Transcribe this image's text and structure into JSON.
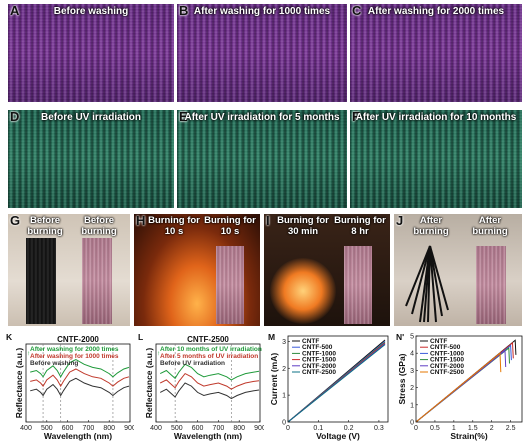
{
  "row1": {
    "A": {
      "label": "A",
      "caption": "Before washing"
    },
    "B": {
      "label": "B",
      "caption": "After washing for 1000 times"
    },
    "C": {
      "label": "C",
      "caption": "After washing for 2000 times"
    }
  },
  "row2": {
    "D": {
      "label": "D",
      "caption": "Before UV irradiation"
    },
    "E": {
      "label": "E",
      "caption": "After UV irradiation for 5 months"
    },
    "F": {
      "label": "F",
      "caption": "After UV irradiation for 10 months"
    }
  },
  "row3": {
    "G": {
      "label": "G",
      "cap1": "Before burning",
      "cap2": "Before burning"
    },
    "H": {
      "label": "H",
      "cap1": "Burning for 10 s",
      "cap2": "Burning for 10 s"
    },
    "I": {
      "label": "I",
      "cap1": "Burning for 30 min",
      "cap2": "Burning for 8 hr"
    },
    "J": {
      "label": "J",
      "cap1": "After burning",
      "cap2": "After burning"
    }
  },
  "chart_data": [
    {
      "id": "K",
      "type": "line",
      "title": "CNTF-2000",
      "xlabel": "Wavelength (nm)",
      "ylabel": "Reflectance (a.u.)",
      "xlim": [
        400,
        900
      ],
      "xticks": [
        400,
        500,
        600,
        700,
        800,
        900
      ],
      "dashed_x": [
        482,
        567,
        818
      ],
      "legend": [
        "After washing for 2000 times",
        "After washing for 1000 times",
        "Before washing"
      ],
      "series": [
        {
          "name": "After washing for 2000 times",
          "color": "#1f9a3a",
          "x": [
            420,
            450,
            470,
            482,
            500,
            530,
            550,
            567,
            580,
            610,
            640,
            680,
            720,
            760,
            800,
            818,
            840,
            870,
            895
          ],
          "y": [
            0.64,
            0.66,
            0.62,
            0.58,
            0.66,
            0.72,
            0.66,
            0.58,
            0.64,
            0.76,
            0.8,
            0.74,
            0.7,
            0.68,
            0.62,
            0.58,
            0.63,
            0.68,
            0.7
          ]
        },
        {
          "name": "After washing for 1000 times",
          "color": "#c0392b",
          "x": [
            420,
            450,
            470,
            482,
            500,
            530,
            550,
            567,
            580,
            610,
            640,
            680,
            720,
            760,
            800,
            818,
            840,
            870,
            895
          ],
          "y": [
            0.52,
            0.54,
            0.5,
            0.46,
            0.54,
            0.6,
            0.54,
            0.46,
            0.52,
            0.64,
            0.68,
            0.62,
            0.58,
            0.56,
            0.5,
            0.46,
            0.51,
            0.56,
            0.58
          ]
        },
        {
          "name": "Before washing",
          "color": "#333333",
          "x": [
            420,
            450,
            470,
            482,
            500,
            530,
            550,
            567,
            580,
            610,
            640,
            680,
            720,
            760,
            800,
            818,
            840,
            870,
            895
          ],
          "y": [
            0.4,
            0.42,
            0.38,
            0.34,
            0.42,
            0.48,
            0.42,
            0.34,
            0.4,
            0.52,
            0.56,
            0.5,
            0.46,
            0.44,
            0.38,
            0.34,
            0.39,
            0.44,
            0.46
          ]
        }
      ]
    },
    {
      "id": "L",
      "type": "line",
      "title": "CNTF-2500",
      "xlabel": "Wavelength (nm)",
      "ylabel": "Reflectance (a.u.)",
      "xlim": [
        400,
        900
      ],
      "xticks": [
        400,
        500,
        600,
        700,
        800,
        900
      ],
      "dashed_x": [
        492,
        762
      ],
      "legend": [
        "After 10 months of UV irradiation",
        "After 5 months of UV irradiation",
        "Before UV irradiation"
      ],
      "series": [
        {
          "name": "After 10 months of UV irradiation",
          "color": "#1f9a3a",
          "x": [
            420,
            450,
            475,
            492,
            510,
            540,
            570,
            600,
            630,
            660,
            700,
            740,
            762,
            790,
            830,
            870,
            895
          ],
          "y": [
            0.62,
            0.66,
            0.6,
            0.56,
            0.64,
            0.74,
            0.7,
            0.62,
            0.58,
            0.6,
            0.62,
            0.58,
            0.54,
            0.58,
            0.62,
            0.64,
            0.65
          ]
        },
        {
          "name": "After 5 months of UV irradiation",
          "color": "#c0392b",
          "x": [
            420,
            450,
            475,
            492,
            510,
            540,
            570,
            600,
            630,
            660,
            700,
            740,
            762,
            790,
            830,
            870,
            895
          ],
          "y": [
            0.5,
            0.54,
            0.48,
            0.44,
            0.52,
            0.62,
            0.58,
            0.5,
            0.46,
            0.48,
            0.5,
            0.46,
            0.42,
            0.46,
            0.5,
            0.52,
            0.53
          ]
        },
        {
          "name": "Before UV irradiation",
          "color": "#333333",
          "x": [
            420,
            450,
            475,
            492,
            510,
            540,
            570,
            600,
            630,
            660,
            700,
            740,
            762,
            790,
            830,
            870,
            895
          ],
          "y": [
            0.38,
            0.42,
            0.36,
            0.32,
            0.4,
            0.5,
            0.46,
            0.38,
            0.34,
            0.36,
            0.38,
            0.34,
            0.3,
            0.34,
            0.38,
            0.4,
            0.41
          ]
        }
      ]
    },
    {
      "id": "M",
      "type": "line",
      "xlabel": "Voltage (V)",
      "ylabel": "Current (mA)",
      "xlim": [
        0,
        0.33
      ],
      "ylim": [
        0,
        3.2
      ],
      "xticks": [
        0.0,
        0.1,
        0.2,
        0.3
      ],
      "yticks": [
        0,
        1,
        2,
        3
      ],
      "legend": [
        "CNTF",
        "CNTF-500",
        "CNTF-1000",
        "CNTF-1500",
        "CNTF-2000",
        "CNTF-2500"
      ],
      "series": [
        {
          "name": "CNTF",
          "color": "#111111",
          "x": [
            0,
            0.32
          ],
          "y": [
            0,
            3.05
          ]
        },
        {
          "name": "CNTF-500",
          "color": "#3b5bdb",
          "x": [
            0,
            0.32
          ],
          "y": [
            0,
            3.0
          ]
        },
        {
          "name": "CNTF-1000",
          "color": "#2b8a3e",
          "x": [
            0,
            0.32
          ],
          "y": [
            0,
            2.97
          ]
        },
        {
          "name": "CNTF-1500",
          "color": "#c92a2a",
          "x": [
            0,
            0.32
          ],
          "y": [
            0,
            2.94
          ]
        },
        {
          "name": "CNTF-2000",
          "color": "#5f3dc4",
          "x": [
            0,
            0.32
          ],
          "y": [
            0,
            2.91
          ]
        },
        {
          "name": "CNTF-2500",
          "color": "#0b7285",
          "x": [
            0,
            0.32
          ],
          "y": [
            0,
            2.88
          ]
        }
      ]
    },
    {
      "id": "N",
      "type": "line",
      "xlabel": "Strain(%)",
      "ylabel": "Stress (GPa)",
      "xlim": [
        0,
        2.8
      ],
      "ylim": [
        0,
        5
      ],
      "xticks": [
        0.0,
        0.5,
        1.0,
        1.5,
        2.0,
        2.5
      ],
      "yticks": [
        0,
        1,
        2,
        3,
        4,
        5
      ],
      "legend": [
        "CNTF",
        "CNTF-500",
        "CNTF-1000",
        "CNTF-1500",
        "CNTF-2000",
        "CNTF-2500"
      ],
      "series": [
        {
          "name": "CNTF",
          "color": "#111111",
          "x": [
            0,
            2.62,
            2.64
          ],
          "y": [
            0,
            4.75,
            3.9
          ]
        },
        {
          "name": "CNTF-500",
          "color": "#c92a2a",
          "x": [
            0,
            2.55,
            2.57
          ],
          "y": [
            0,
            4.6,
            3.7
          ]
        },
        {
          "name": "CNTF-1000",
          "color": "#3b5bdb",
          "x": [
            0,
            2.5,
            2.52
          ],
          "y": [
            0,
            4.45,
            3.6
          ]
        },
        {
          "name": "CNTF-1500",
          "color": "#2b8a3e",
          "x": [
            0,
            2.45,
            2.47
          ],
          "y": [
            0,
            4.3,
            3.4
          ]
        },
        {
          "name": "CNTF-2000",
          "color": "#5f3dc4",
          "x": [
            0,
            2.35,
            2.37
          ],
          "y": [
            0,
            4.15,
            3.2
          ]
        },
        {
          "name": "CNTF-2500",
          "color": "#e67700",
          "x": [
            0,
            2.22,
            2.24
          ],
          "y": [
            0,
            4.0,
            2.9
          ]
        }
      ]
    }
  ],
  "chart_labels": {
    "K": "K",
    "L": "L",
    "M": "M",
    "N": "N'"
  }
}
